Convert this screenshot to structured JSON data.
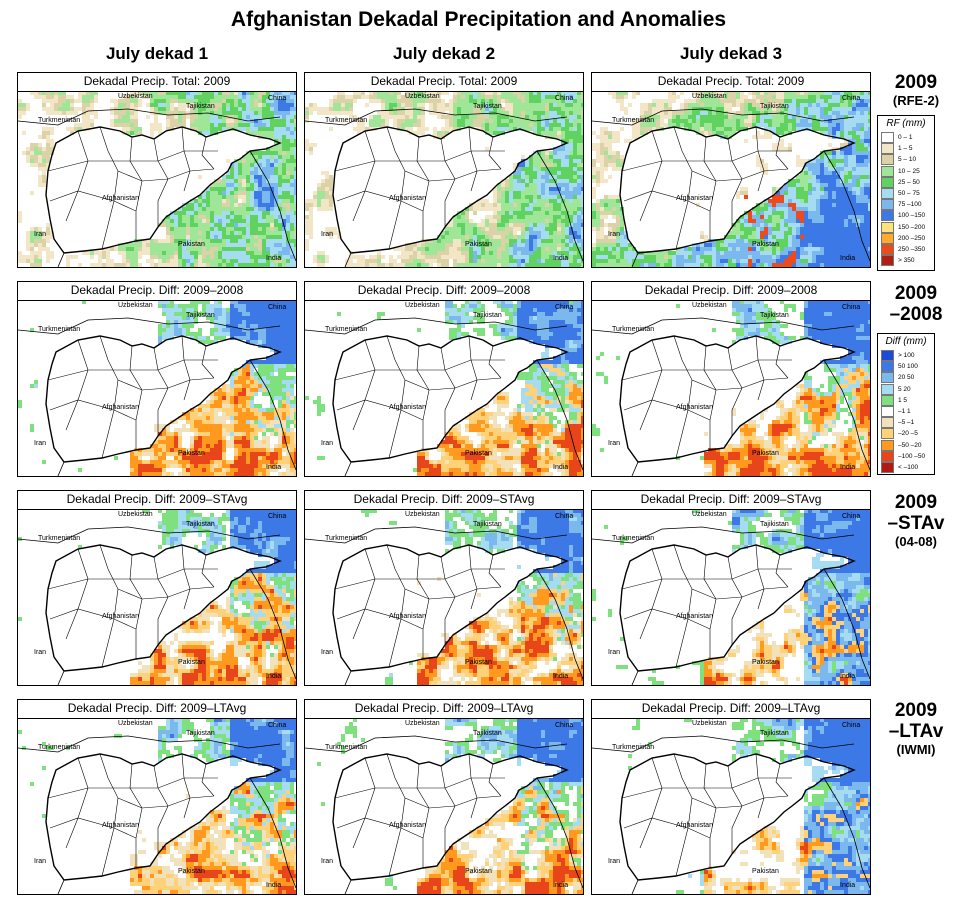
{
  "title": "Afghanistan Dekadal Precipitation and Anomalies",
  "columns": [
    "July dekad 1",
    "July dekad 2",
    "July dekad 3"
  ],
  "rows": [
    {
      "id": "total",
      "label_line1": "2009",
      "label_line2": "(RFE-2)",
      "panel_title": "Dekadal Precip. Total: 2009"
    },
    {
      "id": "diff2008",
      "label_line1": "2009",
      "label_line2": "–2008",
      "panel_title": "Dekadal Precip. Diff:  2009–2008"
    },
    {
      "id": "diffstavg",
      "label_line1": "2009",
      "label_line2": "–STAv",
      "label_line3": "(04-08)",
      "panel_title": "Dekadal Precip. Diff:  2009–STAvg"
    },
    {
      "id": "diffltavg",
      "label_line1": "2009",
      "label_line2": "–LTAv",
      "label_line3": "(IWMI)",
      "panel_title": "Dekadal Precip. Diff:  2009–LTAvg"
    }
  ],
  "map_labels": {
    "uzbekistan": "Uzbekistan",
    "tajikistan": "Tajikistan",
    "china": "China",
    "turkmenistan": "Turkmenistan",
    "afghanistan": "Afghanistan",
    "iran": "Iran",
    "pakistan": "Pakistan",
    "india": "India"
  },
  "rf_legend": {
    "title": "RF (mm)",
    "items": [
      {
        "label": "0 – 1",
        "color": "#ffffff"
      },
      {
        "label": "1 – 5",
        "color": "#f2e6c6"
      },
      {
        "label": "5 – 10",
        "color": "#dcd2a8"
      },
      {
        "label": "10 – 25",
        "color": "#9fe698"
      },
      {
        "label": "25 – 50",
        "color": "#5fd25f"
      },
      {
        "label": "50 – 75",
        "color": "#a6dcf2"
      },
      {
        "label": "75 –100",
        "color": "#7bb8ee"
      },
      {
        "label": "100 –150",
        "color": "#3c78e6"
      },
      {
        "label": "150 –200",
        "color": "#ffe27a"
      },
      {
        "label": "200 –250",
        "color": "#ffaa2a"
      },
      {
        "label": "250 –350",
        "color": "#ee4a1a"
      },
      {
        "label": "> 350",
        "color": "#b41e10"
      }
    ]
  },
  "diff_legend": {
    "title": "Diff (mm)",
    "items": [
      {
        "label": "> 100",
        "color": "#1a4cd6"
      },
      {
        "label": "50  100",
        "color": "#3c78e6"
      },
      {
        "label": "20  50",
        "color": "#7bb8ee"
      },
      {
        "label": "5  20",
        "color": "#a6dcf2"
      },
      {
        "label": "1  5",
        "color": "#7ee07e"
      },
      {
        "label": "–1  1",
        "color": "#ffffff"
      },
      {
        "label": "–5  –1",
        "color": "#f2e2bc"
      },
      {
        "label": "–20  –5",
        "color": "#ffd27a"
      },
      {
        "label": "–50  –20",
        "color": "#ff9a1e"
      },
      {
        "label": "–100  –50",
        "color": "#e8461a"
      },
      {
        "label": "< –100",
        "color": "#b01a10"
      }
    ]
  }
}
